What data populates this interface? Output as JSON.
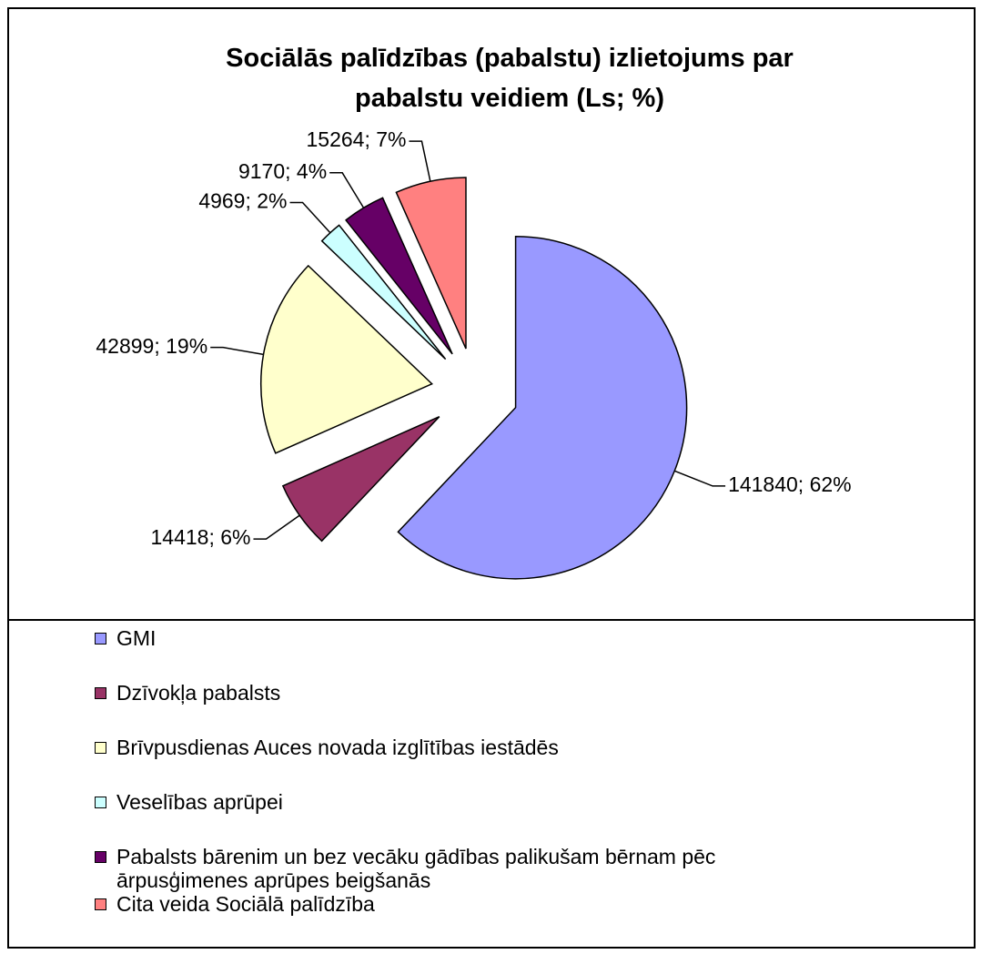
{
  "chart_data": {
    "type": "pie",
    "title": "Sociālās palīdzības (pabalstu) izlietojums par\npabalstu veidiem (Ls; %)",
    "categories": [
      "GMI",
      "Dzīvokļa pabalsts",
      "Brīvpusdienas Auces novada izglītības iestādēs",
      "Veselības aprūpei",
      "Pabalsts bārenim un bez vecāku gādības palikušam bērnam pēc ārpusģimenes aprūpes beigšanās",
      "Cita veida Sociālā palīdzība"
    ],
    "values": [
      141840,
      14418,
      42899,
      4969,
      9170,
      15264
    ],
    "value_labels": [
      "141840; 62%",
      "14418; 6%",
      "42899; 19%",
      "4969; 2%",
      "9170; 4%",
      "15264; 7%"
    ],
    "colors": [
      "#9999ff",
      "#993366",
      "#ffffcc",
      "#ccffff",
      "#660066",
      "#ff8080"
    ],
    "legend": "bottom"
  }
}
